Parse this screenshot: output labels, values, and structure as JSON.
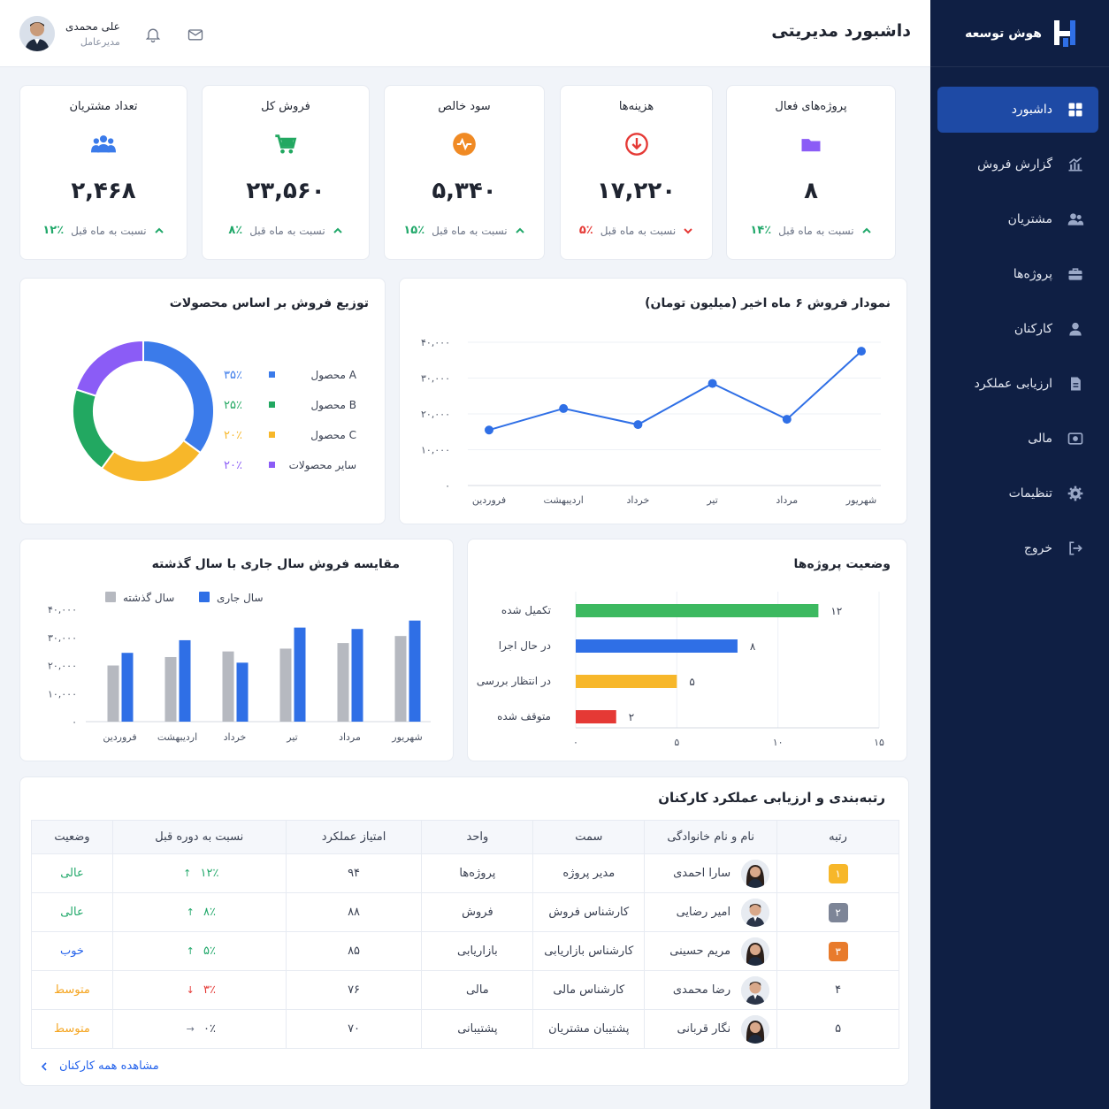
{
  "brand": {
    "name": "هوش توسعه"
  },
  "sidebar": {
    "items": [
      {
        "label": "داشبورد",
        "icon": "grid-icon",
        "active": true
      },
      {
        "label": "گزارش فروش",
        "icon": "chart-icon"
      },
      {
        "label": "مشتریان",
        "icon": "users-icon"
      },
      {
        "label": "پروژه‌ها",
        "icon": "briefcase-icon"
      },
      {
        "label": "کارکنان",
        "icon": "user-icon"
      },
      {
        "label": "ارزیابی عملکرد",
        "icon": "document-icon"
      },
      {
        "label": "مالی",
        "icon": "money-icon"
      },
      {
        "label": "تنظیمات",
        "icon": "gear-icon"
      },
      {
        "label": "خروج",
        "icon": "logout-icon"
      }
    ]
  },
  "header": {
    "title": "داشبورد مدیریتی",
    "user": {
      "name": "علی محمدی",
      "role": "مدیرعامل"
    }
  },
  "stats": [
    {
      "title": "پروژه‌های فعال",
      "value": "۸",
      "trend_label": "نسبت به ماه قبل",
      "trend": "۱۴٪",
      "direction": "up",
      "icon": "folder-icon",
      "color": "#8b5cf6"
    },
    {
      "title": "هزینه‌ها",
      "value": "۱۷,۲۲۰",
      "trend_label": "نسبت به ماه قبل",
      "trend": "۵٪",
      "direction": "down",
      "icon": "arrow-down-circle-icon",
      "color": "#e53935"
    },
    {
      "title": "سود خالص",
      "value": "۵,۳۴۰",
      "trend_label": "نسبت به ماه قبل",
      "trend": "۱۵٪",
      "direction": "up",
      "icon": "pulse-icon",
      "color": "#f08a24"
    },
    {
      "title": "فروش کل",
      "value": "۲۳,۵۶۰",
      "trend_label": "نسبت به ماه قبل",
      "trend": "۸٪",
      "direction": "up",
      "icon": "cart-icon",
      "color": "#22a861"
    },
    {
      "title": "تعداد مشتریان",
      "value": "۲,۴۶۸",
      "trend_label": "نسبت به ماه قبل",
      "trend": "۱۲٪",
      "direction": "up",
      "icon": "users-icon",
      "color": "#3b7bea"
    }
  ],
  "chart_data": [
    {
      "type": "line",
      "title": "نمودار فروش ۶ ماه اخیر (میلیون تومان)",
      "categories": [
        "فروردین",
        "اردیبهشت",
        "خرداد",
        "تیر",
        "مرداد",
        "شهریور"
      ],
      "values": [
        15500,
        21500,
        17000,
        28500,
        18500,
        37500
      ],
      "ylim": [
        0,
        40000
      ],
      "yticks": [
        "۰",
        "۱۰,۰۰۰",
        "۲۰,۰۰۰",
        "۳۰,۰۰۰",
        "۴۰,۰۰۰"
      ],
      "grid": true,
      "color": "#2f6fe6"
    },
    {
      "type": "pie",
      "title": "توزیع فروش بر اساس محصولات",
      "slices": [
        {
          "name": "محصول A",
          "value": 35,
          "label": "۳۵٪",
          "color": "#3b7bea"
        },
        {
          "name": "محصول B",
          "value": 25,
          "label": "۲۵٪",
          "color": "#f7b72a"
        },
        {
          "name": "محصول C",
          "value": 20,
          "label": "۲۰٪",
          "color": "#22a861"
        },
        {
          "name": "سایر محصولات",
          "value": 20,
          "label": "۲۰٪",
          "color": "#8b5cf6"
        }
      ],
      "legend_colors": [
        "#3b7bea",
        "#22a861",
        "#f7b72a",
        "#8b5cf6"
      ]
    },
    {
      "type": "bar",
      "title": "وضعیت پروژه‌ها",
      "orientation": "horizontal",
      "categories": [
        "تکمیل شده",
        "در حال اجرا",
        "در انتظار بررسی",
        "متوقف شده"
      ],
      "values": [
        12,
        8,
        5,
        2
      ],
      "value_labels": [
        "۱۲",
        "۸",
        "۵",
        "۲"
      ],
      "colors": [
        "#3cb960",
        "#2f6fe6",
        "#f7b72a",
        "#e53935"
      ],
      "xlim": [
        0,
        15
      ],
      "xticks": [
        "۰",
        "۵",
        "۱۰",
        "۱۵"
      ],
      "grid": true
    },
    {
      "type": "bar",
      "title": "مقایسه فروش سال جاری با سال گذشته",
      "categories": [
        "فروردین",
        "اردیبهشت",
        "خرداد",
        "تیر",
        "مرداد",
        "شهریور"
      ],
      "series": [
        {
          "name": "سال گذشته",
          "values": [
            20000,
            23000,
            25000,
            26000,
            28000,
            30500
          ],
          "color": "#b6b9c0"
        },
        {
          "name": "سال جاری",
          "values": [
            24500,
            29000,
            21000,
            33500,
            33000,
            36000
          ],
          "color": "#2f6fe6"
        }
      ],
      "ylim": [
        0,
        40000
      ],
      "yticks": [
        "۰",
        "۱۰,۰۰۰",
        "۲۰,۰۰۰",
        "۳۰,۰۰۰",
        "۴۰,۰۰۰"
      ],
      "legend": "top-left"
    }
  ],
  "ranking": {
    "title": "رتبه‌بندی و ارزیابی عملکرد کارکنان",
    "headers": [
      "رتبه",
      "نام و نام خانوادگی",
      "سمت",
      "واحد",
      "امتیاز عملکرد",
      "نسبت به دوره قبل",
      "وضعیت"
    ],
    "rows": [
      {
        "rank": "۱",
        "badge_color": "#f7b72a",
        "name": "سارا احمدی",
        "gender": "f",
        "role": "مدیر پروژه",
        "unit": "پروژه‌ها",
        "score": "۹۴",
        "change": "۱۲٪",
        "change_dir": "up",
        "status": "عالی",
        "status_class": "status-excellent"
      },
      {
        "rank": "۲",
        "badge_color": "#7d8597",
        "name": "امیر رضایی",
        "gender": "m",
        "role": "کارشناس فروش",
        "unit": "فروش",
        "score": "۸۸",
        "change": "۸٪",
        "change_dir": "up",
        "status": "عالی",
        "status_class": "status-excellent"
      },
      {
        "rank": "۳",
        "badge_color": "#e87b2c",
        "name": "مریم حسینی",
        "gender": "f",
        "role": "کارشناس بازاریابی",
        "unit": "بازاریابی",
        "score": "۸۵",
        "change": "۵٪",
        "change_dir": "up",
        "status": "خوب",
        "status_class": "status-good"
      },
      {
        "rank": "۴",
        "badge_color": "",
        "name": "رضا محمدی",
        "gender": "m",
        "role": "کارشناس مالی",
        "unit": "مالی",
        "score": "۷۶",
        "change": "۳٪",
        "change_dir": "down",
        "status": "متوسط",
        "status_class": "status-mid"
      },
      {
        "rank": "۵",
        "badge_color": "",
        "name": "نگار قربانی",
        "gender": "f",
        "role": "پشتیبان مشتریان",
        "unit": "پشتیبانی",
        "score": "۷۰",
        "change": "۰٪",
        "change_dir": "flat",
        "status": "متوسط",
        "status_class": "status-mid"
      }
    ],
    "view_all": "مشاهده همه کارکنان"
  }
}
